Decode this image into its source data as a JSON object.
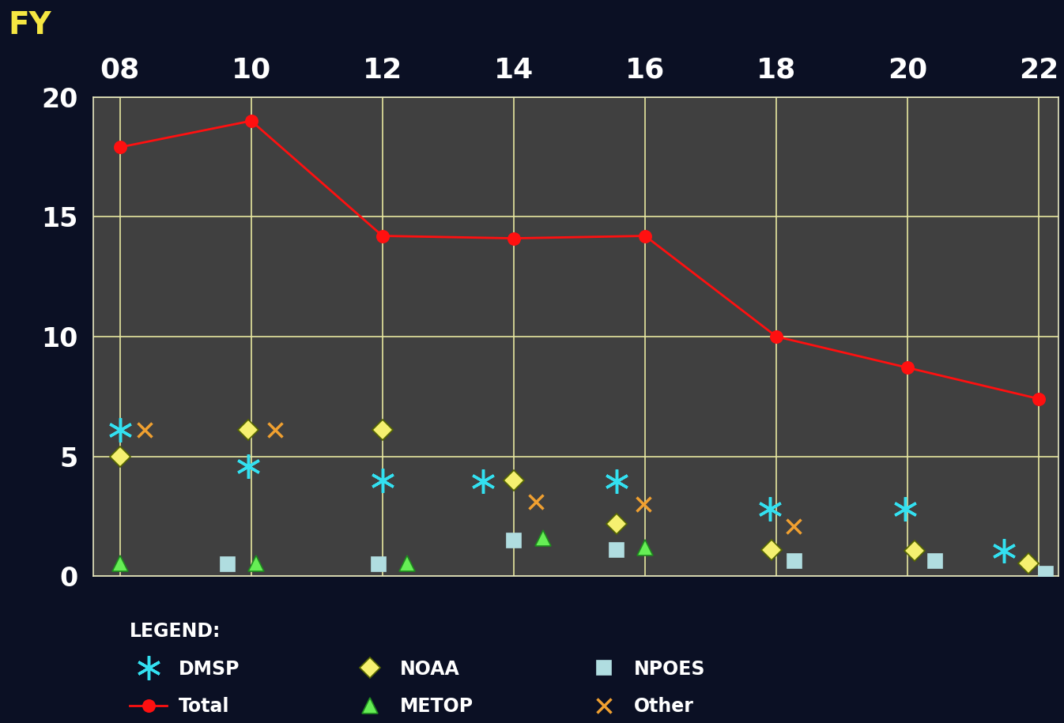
{
  "chart_data": {
    "type": "scatter",
    "x_label": "FY",
    "xlim": [
      7.6,
      22.3
    ],
    "xticks": [
      {
        "value": 8,
        "label": "08"
      },
      {
        "value": 10,
        "label": "10"
      },
      {
        "value": 12,
        "label": "12"
      },
      {
        "value": 14,
        "label": "14"
      },
      {
        "value": 16,
        "label": "16"
      },
      {
        "value": 18,
        "label": "18"
      },
      {
        "value": 20,
        "label": "20"
      },
      {
        "value": 22,
        "label": "22"
      }
    ],
    "ylim": [
      0,
      20
    ],
    "yticks": [
      0,
      5,
      10,
      15,
      20
    ],
    "grid": true,
    "legend": "bottom",
    "legend_title": "LEGEND:",
    "series": [
      {
        "name": "DMSP",
        "type": "scatter",
        "marker": "asterisk",
        "color": "#33e0f0",
        "x": [
          8.0,
          9.96,
          12.0,
          13.53,
          15.56,
          17.9,
          19.96,
          21.46
        ],
        "values": [
          6.1,
          4.6,
          4.0,
          3.96,
          3.96,
          2.8,
          2.8,
          1.05
        ]
      },
      {
        "name": "Total",
        "type": "line",
        "marker": "circle",
        "color": "#ff1010",
        "x": [
          8,
          10,
          12,
          14,
          16,
          18,
          20,
          22
        ],
        "values": [
          17.9,
          19.0,
          14.2,
          14.1,
          14.2,
          10.0,
          8.7,
          7.4
        ]
      },
      {
        "name": "NOAA",
        "type": "scatter",
        "marker": "diamond",
        "color": "#f5f070",
        "x": [
          8.0,
          9.96,
          12.0,
          14.0,
          15.56,
          17.93,
          20.1,
          21.84
        ],
        "values": [
          5.0,
          6.1,
          6.1,
          4.0,
          2.2,
          1.1,
          1.05,
          0.55
        ]
      },
      {
        "name": "METOP",
        "type": "scatter",
        "marker": "triangle",
        "color": "#66ee55",
        "x": [
          8.0,
          10.08,
          12.37,
          14.45,
          16.0
        ],
        "values": [
          0.55,
          0.55,
          0.55,
          1.6,
          1.2
        ]
      },
      {
        "name": "NPOES",
        "type": "scatter",
        "marker": "square",
        "color": "#b0dde0",
        "x": [
          9.64,
          11.94,
          14.0,
          15.56,
          18.27,
          20.42,
          22.11
        ],
        "values": [
          0.5,
          0.5,
          1.5,
          1.1,
          0.65,
          0.65,
          0.1
        ]
      },
      {
        "name": "Other",
        "type": "scatter",
        "marker": "x",
        "color": "#f0a030",
        "x": [
          8.38,
          10.36,
          14.34,
          15.97,
          18.26
        ],
        "values": [
          6.1,
          6.1,
          3.1,
          3.0,
          2.1
        ]
      }
    ]
  }
}
